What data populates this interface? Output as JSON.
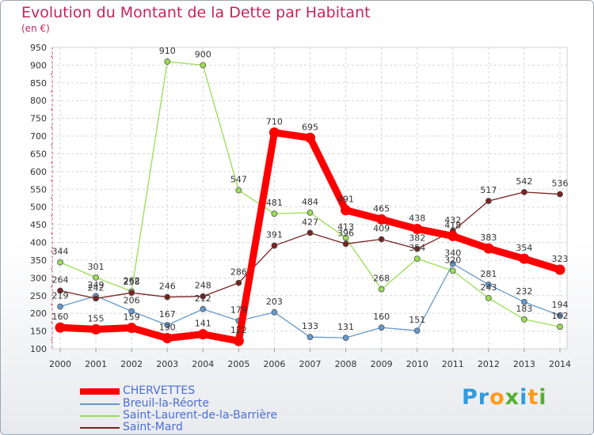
{
  "title": "Evolution du Montant de la Dette par Habitant",
  "unit": "(en €)",
  "logo": {
    "text": "Proxiti",
    "colors": [
      "#2f9be0",
      "#ff9a1a",
      "#55b030"
    ]
  },
  "chart_data": {
    "type": "line",
    "title": "Evolution du Montant de la Dette par Habitant",
    "ylabel": "(en €)",
    "xlabel": "",
    "x": [
      "2000",
      "2001",
      "2002",
      "2003",
      "2004",
      "2005",
      "2006",
      "2007",
      "2008",
      "2009",
      "2010",
      "2011",
      "2012",
      "2013",
      "2014"
    ],
    "yticks": [
      100,
      150,
      200,
      250,
      300,
      350,
      400,
      450,
      500,
      550,
      600,
      650,
      700,
      750,
      800,
      850,
      900,
      950
    ],
    "ylim": [
      100,
      950
    ],
    "grid": true,
    "legend_position": "bottom-left",
    "series": [
      {
        "name": "CHERVETTES",
        "color": "#ff0000",
        "values": [
          160,
          155,
          159,
          130,
          141,
          122,
          710,
          695,
          491,
          465,
          438,
          418,
          383,
          354,
          323
        ]
      },
      {
        "name": "Breuil-la-Réorte",
        "color": "#6699cc",
        "values": [
          219,
          249,
          206,
          167,
          212,
          179,
          203,
          133,
          131,
          160,
          151,
          340,
          281,
          232,
          194
        ]
      },
      {
        "name": "Saint-Laurent-de-la-Barrière",
        "color": "#99dd55",
        "values": [
          344,
          301,
          262,
          910,
          900,
          547,
          481,
          484,
          413,
          268,
          354,
          320,
          243,
          183,
          162
        ]
      },
      {
        "name": "Saint-Mard",
        "color": "#772222",
        "values": [
          264,
          242,
          258,
          246,
          248,
          286,
          391,
          427,
          396,
          409,
          382,
          432,
          517,
          542,
          536
        ]
      }
    ],
    "data_labels": [
      [
        160,
        155,
        159,
        130,
        141,
        122,
        710,
        695,
        491,
        465,
        438,
        418,
        383,
        354,
        323
      ],
      [
        219,
        249,
        206,
        167,
        212,
        179,
        203,
        133,
        131,
        160,
        151,
        340,
        281,
        232,
        194
      ],
      [
        344,
        301,
        262,
        910,
        900,
        547,
        481,
        484,
        413,
        268,
        354,
        320,
        243,
        183,
        162
      ],
      [
        264,
        242,
        258,
        246,
        248,
        286,
        391,
        427,
        396,
        409,
        382,
        432,
        517,
        542,
        536
      ]
    ]
  }
}
